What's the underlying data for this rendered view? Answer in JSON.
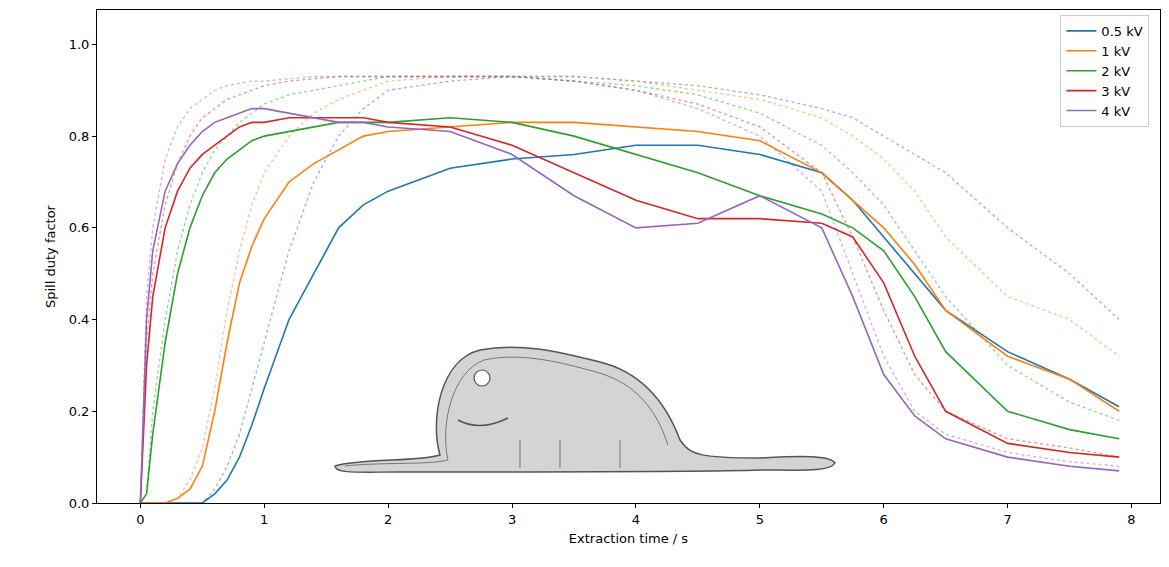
{
  "chart_data": {
    "type": "line",
    "x_label": "Extraction time / s",
    "y_label": "Spill duty factor",
    "x": [
      0,
      0.05,
      0.1,
      0.2,
      0.3,
      0.4,
      0.5,
      0.6,
      0.7,
      0.8,
      0.9,
      1.0,
      1.2,
      1.4,
      1.6,
      1.8,
      2.0,
      2.5,
      3.0,
      3.5,
      4.0,
      4.5,
      5.0,
      5.5,
      5.75,
      6.0,
      6.25,
      6.5,
      7.0,
      7.5,
      7.9
    ],
    "series": [
      {
        "color": "#1f77b4",
        "line_style": "dotted",
        "values": [
          0,
          0,
          0,
          0,
          0,
          0,
          0,
          0.03,
          0.08,
          0.15,
          0.25,
          0.35,
          0.55,
          0.7,
          0.8,
          0.86,
          0.9,
          0.92,
          0.93,
          0.93,
          0.92,
          0.91,
          0.89,
          0.86,
          0.84,
          0.8,
          0.76,
          0.72,
          0.6,
          0.5,
          0.4
        ]
      },
      {
        "color": "#ff7f0e",
        "line_style": "dotted",
        "values": [
          0,
          0,
          0,
          0,
          0.01,
          0.05,
          0.12,
          0.25,
          0.42,
          0.55,
          0.65,
          0.72,
          0.8,
          0.85,
          0.88,
          0.9,
          0.92,
          0.93,
          0.93,
          0.93,
          0.92,
          0.9,
          0.88,
          0.84,
          0.8,
          0.75,
          0.68,
          0.58,
          0.45,
          0.4,
          0.32
        ]
      },
      {
        "color": "#2ca02c",
        "line_style": "dotted",
        "values": [
          0,
          0.02,
          0.2,
          0.4,
          0.55,
          0.65,
          0.72,
          0.77,
          0.8,
          0.83,
          0.85,
          0.87,
          0.89,
          0.9,
          0.91,
          0.92,
          0.93,
          0.93,
          0.93,
          0.92,
          0.91,
          0.89,
          0.85,
          0.78,
          0.72,
          0.65,
          0.55,
          0.45,
          0.3,
          0.22,
          0.18
        ]
      },
      {
        "color": "#d62728",
        "line_style": "dotted",
        "values": [
          0,
          0.35,
          0.5,
          0.65,
          0.74,
          0.8,
          0.84,
          0.86,
          0.88,
          0.89,
          0.9,
          0.91,
          0.92,
          0.925,
          0.93,
          0.93,
          0.93,
          0.93,
          0.93,
          0.92,
          0.9,
          0.87,
          0.82,
          0.72,
          0.58,
          0.42,
          0.28,
          0.2,
          0.14,
          0.12,
          0.1
        ]
      },
      {
        "color": "#9467bd",
        "line_style": "dotted",
        "values": [
          0,
          0.45,
          0.6,
          0.75,
          0.82,
          0.86,
          0.88,
          0.9,
          0.91,
          0.915,
          0.92,
          0.92,
          0.925,
          0.93,
          0.93,
          0.93,
          0.93,
          0.93,
          0.93,
          0.92,
          0.9,
          0.86,
          0.8,
          0.68,
          0.5,
          0.32,
          0.2,
          0.15,
          0.11,
          0.09,
          0.08
        ]
      },
      {
        "name": "0.5 kV",
        "color": "#1f77b4",
        "line_style": "solid",
        "values": [
          0,
          0,
          0,
          0,
          0,
          0,
          0,
          0.02,
          0.05,
          0.1,
          0.17,
          0.25,
          0.4,
          0.5,
          0.6,
          0.65,
          0.68,
          0.73,
          0.75,
          0.76,
          0.78,
          0.78,
          0.76,
          0.72,
          0.66,
          0.58,
          0.5,
          0.42,
          0.33,
          0.27,
          0.21
        ]
      },
      {
        "name": "1 kV",
        "color": "#ff7f0e",
        "line_style": "solid",
        "values": [
          0,
          0,
          0,
          0,
          0.01,
          0.03,
          0.08,
          0.2,
          0.35,
          0.48,
          0.56,
          0.62,
          0.7,
          0.74,
          0.77,
          0.8,
          0.81,
          0.82,
          0.83,
          0.83,
          0.82,
          0.81,
          0.79,
          0.72,
          0.66,
          0.6,
          0.52,
          0.42,
          0.32,
          0.27,
          0.2
        ]
      },
      {
        "name": "2 kV",
        "color": "#2ca02c",
        "line_style": "solid",
        "values": [
          0,
          0.02,
          0.15,
          0.35,
          0.5,
          0.6,
          0.67,
          0.72,
          0.75,
          0.77,
          0.79,
          0.8,
          0.81,
          0.82,
          0.83,
          0.83,
          0.83,
          0.84,
          0.83,
          0.8,
          0.76,
          0.72,
          0.67,
          0.63,
          0.6,
          0.55,
          0.45,
          0.33,
          0.2,
          0.16,
          0.14
        ]
      },
      {
        "name": "3 kV",
        "color": "#d62728",
        "line_style": "solid",
        "values": [
          0,
          0.3,
          0.45,
          0.6,
          0.68,
          0.73,
          0.76,
          0.78,
          0.8,
          0.82,
          0.83,
          0.83,
          0.84,
          0.84,
          0.84,
          0.84,
          0.83,
          0.82,
          0.78,
          0.72,
          0.66,
          0.62,
          0.62,
          0.61,
          0.58,
          0.48,
          0.32,
          0.2,
          0.13,
          0.11,
          0.1
        ]
      },
      {
        "name": "4 kV",
        "color": "#9467bd",
        "line_style": "solid",
        "values": [
          0,
          0.4,
          0.55,
          0.68,
          0.74,
          0.78,
          0.81,
          0.83,
          0.84,
          0.85,
          0.86,
          0.86,
          0.85,
          0.84,
          0.83,
          0.83,
          0.82,
          0.81,
          0.76,
          0.67,
          0.6,
          0.61,
          0.67,
          0.6,
          0.45,
          0.28,
          0.19,
          0.14,
          0.1,
          0.08,
          0.07
        ]
      }
    ],
    "xlim": [
      -0.35,
      8.23
    ],
    "ylim": [
      0,
      1.075
    ],
    "xticks": [
      0,
      1,
      2,
      3,
      4,
      5,
      6,
      7,
      8
    ],
    "yticks": [
      {
        "value": 0,
        "label": "0.0"
      },
      0.2,
      0.4,
      0.6,
      0.8,
      {
        "value": 1,
        "label": "1.0"
      }
    ],
    "grid": false,
    "legend": "upper right"
  }
}
